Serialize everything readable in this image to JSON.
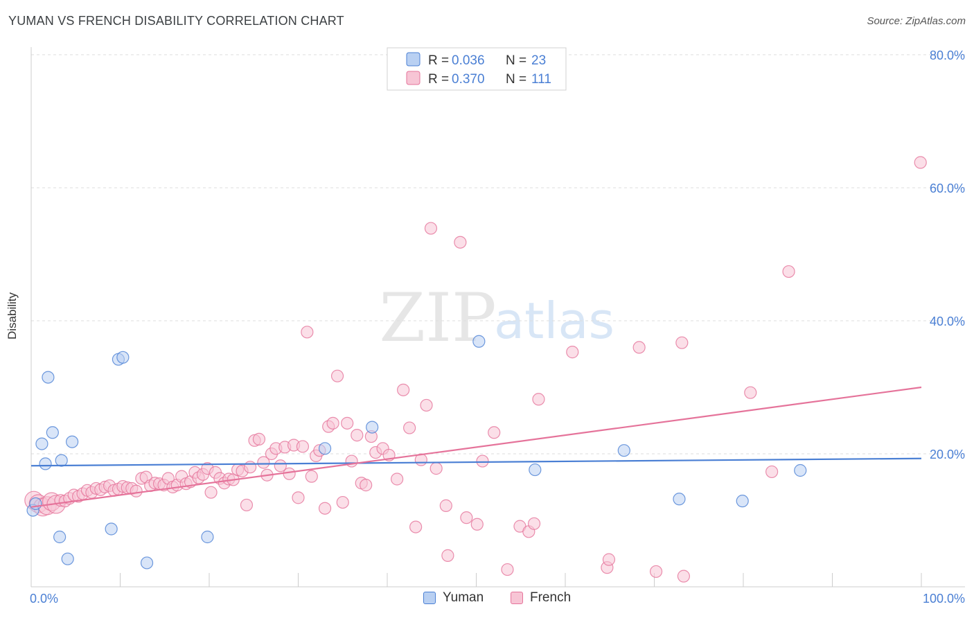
{
  "header": {
    "title": "YUMAN VS FRENCH DISABILITY CORRELATION CHART",
    "source": "Source: ZipAtlas.com"
  },
  "watermark": {
    "zip": "ZIP",
    "atlas": "atlas"
  },
  "colors": {
    "yuman": "#4a7fd4",
    "yuman_fill": "#b9d0f2",
    "french": "#e5739a",
    "french_fill": "#f7c5d5",
    "tick_text": "#4a7fd4",
    "grid": "#dddddd"
  },
  "legend": {
    "rows": [
      {
        "r_label": "R =",
        "r_value": "0.036",
        "n_label": "N =",
        "n_value": "23"
      },
      {
        "r_label": "R =",
        "r_value": "0.370",
        "n_label": "N =",
        "n_value": "111"
      }
    ]
  },
  "bottom_legend": {
    "yuman": "Yuman",
    "french": "French"
  },
  "chart_data": {
    "type": "scatter",
    "title": "YUMAN VS FRENCH DISABILITY CORRELATION CHART",
    "xlabel": "",
    "ylabel": "Disability",
    "xlim": [
      0,
      100
    ],
    "ylim": [
      0,
      80
    ],
    "x_tick_labels": [
      "0.0%",
      "100.0%"
    ],
    "y_tick_values": [
      20,
      40,
      60,
      80
    ],
    "y_tick_labels": [
      "20.0%",
      "40.0%",
      "60.0%",
      "80.0%"
    ],
    "grid": true,
    "legend_position": "top-center",
    "series": [
      {
        "name": "Yuman",
        "color": "#4a7fd4",
        "trend": {
          "x": [
            0,
            100
          ],
          "y": [
            18.2,
            19.3
          ]
        },
        "points": [
          [
            0.2,
            11.5
          ],
          [
            0.5,
            12.5
          ],
          [
            1.2,
            21.5
          ],
          [
            1.6,
            18.5
          ],
          [
            1.9,
            31.5
          ],
          [
            2.4,
            23.2
          ],
          [
            3.2,
            7.5
          ],
          [
            3.4,
            19.0
          ],
          [
            4.1,
            4.2
          ],
          [
            4.6,
            21.8
          ],
          [
            9.0,
            8.7
          ],
          [
            9.8,
            34.2
          ],
          [
            10.3,
            34.5
          ],
          [
            13.0,
            3.6
          ],
          [
            19.8,
            7.5
          ],
          [
            33.0,
            20.8
          ],
          [
            38.3,
            24.0
          ],
          [
            50.3,
            36.9
          ],
          [
            56.6,
            17.6
          ],
          [
            66.6,
            20.5
          ],
          [
            72.8,
            13.2
          ],
          [
            79.9,
            12.9
          ],
          [
            86.4,
            17.5
          ]
        ]
      },
      {
        "name": "French",
        "color": "#e5739a",
        "trend": {
          "x": [
            0,
            100
          ],
          "y": [
            12.0,
            30.0
          ]
        },
        "points": [
          [
            0.3,
            13.0
          ],
          [
            0.8,
            12.5
          ],
          [
            1.3,
            12.0
          ],
          [
            1.8,
            12.2
          ],
          [
            2.3,
            12.8
          ],
          [
            2.8,
            12.4
          ],
          [
            3.3,
            13.0
          ],
          [
            3.8,
            12.9
          ],
          [
            4.3,
            13.3
          ],
          [
            4.8,
            13.8
          ],
          [
            5.3,
            13.6
          ],
          [
            5.8,
            14.0
          ],
          [
            6.3,
            14.5
          ],
          [
            6.8,
            14.2
          ],
          [
            7.3,
            14.8
          ],
          [
            7.8,
            14.6
          ],
          [
            8.3,
            15.0
          ],
          [
            8.8,
            15.2
          ],
          [
            9.3,
            14.5
          ],
          [
            9.8,
            14.7
          ],
          [
            10.3,
            15.1
          ],
          [
            10.8,
            14.9
          ],
          [
            11.3,
            14.8
          ],
          [
            11.8,
            14.4
          ],
          [
            12.4,
            16.3
          ],
          [
            12.9,
            16.5
          ],
          [
            13.4,
            15.2
          ],
          [
            13.9,
            15.6
          ],
          [
            14.4,
            15.5
          ],
          [
            14.9,
            15.3
          ],
          [
            15.4,
            16.3
          ],
          [
            15.9,
            15.0
          ],
          [
            16.4,
            15.3
          ],
          [
            16.9,
            16.6
          ],
          [
            17.4,
            15.5
          ],
          [
            17.9,
            15.8
          ],
          [
            18.4,
            17.2
          ],
          [
            18.8,
            16.4
          ],
          [
            19.3,
            16.9
          ],
          [
            19.8,
            17.8
          ],
          [
            20.2,
            14.2
          ],
          [
            20.7,
            17.2
          ],
          [
            21.2,
            16.3
          ],
          [
            21.7,
            15.6
          ],
          [
            22.2,
            16.2
          ],
          [
            22.7,
            16.1
          ],
          [
            23.2,
            17.6
          ],
          [
            23.7,
            17.4
          ],
          [
            24.2,
            12.3
          ],
          [
            24.6,
            18.0
          ],
          [
            25.1,
            22.0
          ],
          [
            25.6,
            22.2
          ],
          [
            26.1,
            18.7
          ],
          [
            26.5,
            16.8
          ],
          [
            27.0,
            20.0
          ],
          [
            27.5,
            20.8
          ],
          [
            28.0,
            18.2
          ],
          [
            28.5,
            21.0
          ],
          [
            29.0,
            17.0
          ],
          [
            29.5,
            21.3
          ],
          [
            30.0,
            13.4
          ],
          [
            30.5,
            21.1
          ],
          [
            31.0,
            38.3
          ],
          [
            31.5,
            16.6
          ],
          [
            32.0,
            19.7
          ],
          [
            32.4,
            20.5
          ],
          [
            33.0,
            11.8
          ],
          [
            33.4,
            24.1
          ],
          [
            33.9,
            24.6
          ],
          [
            34.4,
            31.7
          ],
          [
            35.0,
            12.7
          ],
          [
            35.5,
            24.6
          ],
          [
            36.0,
            18.9
          ],
          [
            36.6,
            22.8
          ],
          [
            37.1,
            15.6
          ],
          [
            37.6,
            15.3
          ],
          [
            38.2,
            22.6
          ],
          [
            38.7,
            20.2
          ],
          [
            39.5,
            20.8
          ],
          [
            40.2,
            19.8
          ],
          [
            41.1,
            16.2
          ],
          [
            41.8,
            29.6
          ],
          [
            42.5,
            23.9
          ],
          [
            43.2,
            9.0
          ],
          [
            43.8,
            19.1
          ],
          [
            44.4,
            27.3
          ],
          [
            44.9,
            53.9
          ],
          [
            45.5,
            17.8
          ],
          [
            46.6,
            12.2
          ],
          [
            46.8,
            4.7
          ],
          [
            48.2,
            51.8
          ],
          [
            48.9,
            10.4
          ],
          [
            50.1,
            9.4
          ],
          [
            50.7,
            18.9
          ],
          [
            52.0,
            23.2
          ],
          [
            53.5,
            2.6
          ],
          [
            54.9,
            9.1
          ],
          [
            55.9,
            8.3
          ],
          [
            56.5,
            9.5
          ],
          [
            57.0,
            28.2
          ],
          [
            60.8,
            35.3
          ],
          [
            64.7,
            2.9
          ],
          [
            64.9,
            4.1
          ],
          [
            68.3,
            36.0
          ],
          [
            70.2,
            2.3
          ],
          [
            73.1,
            36.7
          ],
          [
            73.3,
            1.6
          ],
          [
            80.8,
            29.2
          ],
          [
            83.2,
            17.3
          ],
          [
            85.1,
            47.4
          ],
          [
            99.9,
            63.8
          ]
        ]
      }
    ]
  }
}
